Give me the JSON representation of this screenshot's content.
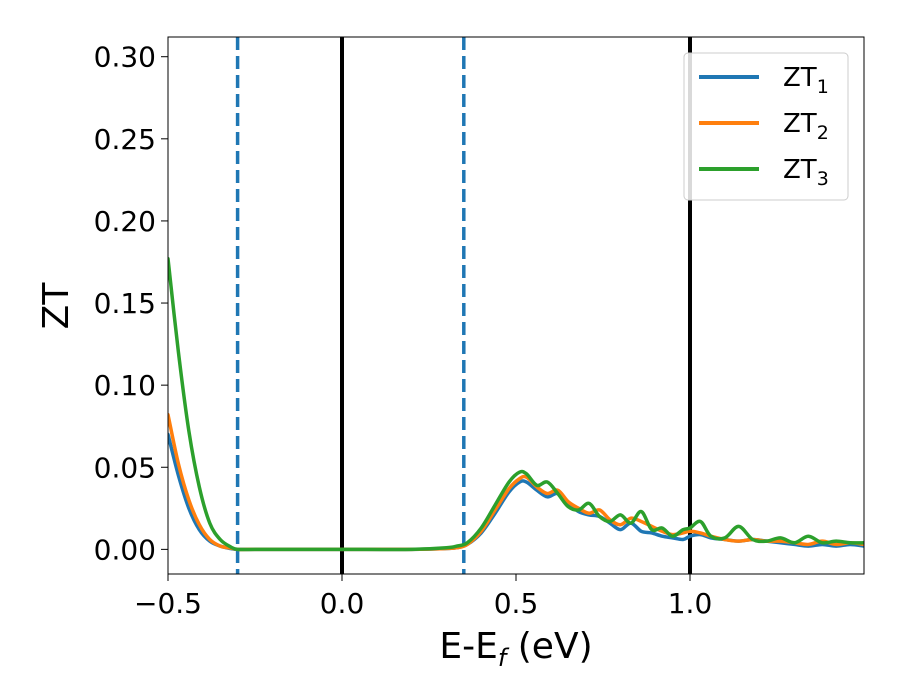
{
  "chart_data": {
    "type": "line",
    "xlabel": "E-E_f (eV)",
    "ylabel": "ZT",
    "xlim": [
      -0.5,
      1.5
    ],
    "ylim": [
      -0.015,
      0.312
    ],
    "x_ticks": [
      "−0.5",
      "0.0",
      "0.5",
      "1.0"
    ],
    "x_tick_values": [
      -0.5,
      0.0,
      0.5,
      1.0
    ],
    "y_ticks": [
      "0.00",
      "0.05",
      "0.10",
      "0.15",
      "0.20",
      "0.25",
      "0.30"
    ],
    "y_tick_values": [
      0.0,
      0.05,
      0.1,
      0.15,
      0.2,
      0.25,
      0.3
    ],
    "grid": false,
    "legend_position": "top-right",
    "vlines": [
      {
        "x": -0.3,
        "style": "dashed",
        "color": "#1f77b4"
      },
      {
        "x": 0.0,
        "style": "solid",
        "color": "#000000"
      },
      {
        "x": 0.35,
        "style": "dashed",
        "color": "#1f77b4"
      },
      {
        "x": 1.0,
        "style": "solid",
        "color": "#000000"
      }
    ],
    "series": [
      {
        "name": "ZT_1",
        "label_main": "ZT",
        "label_sub": "1",
        "color": "#1f77b4",
        "x": [
          -0.5,
          -0.47,
          -0.44,
          -0.41,
          -0.38,
          -0.35,
          -0.32,
          -0.3,
          -0.25,
          -0.2,
          0.0,
          0.2,
          0.3,
          0.33,
          0.36,
          0.4,
          0.44,
          0.48,
          0.51,
          0.53,
          0.56,
          0.59,
          0.62,
          0.65,
          0.68,
          0.71,
          0.74,
          0.77,
          0.8,
          0.83,
          0.86,
          0.89,
          0.92,
          0.95,
          0.98,
          1.0,
          1.03,
          1.06,
          1.1,
          1.14,
          1.18,
          1.22,
          1.26,
          1.3,
          1.34,
          1.38,
          1.42,
          1.46,
          1.5
        ],
        "y": [
          0.07,
          0.045,
          0.025,
          0.012,
          0.005,
          0.002,
          0.0005,
          0.0,
          0.0,
          0.0,
          0.0,
          0.0,
          0.0005,
          0.001,
          0.003,
          0.01,
          0.022,
          0.035,
          0.041,
          0.041,
          0.036,
          0.032,
          0.034,
          0.028,
          0.023,
          0.021,
          0.02,
          0.016,
          0.012,
          0.016,
          0.011,
          0.01,
          0.008,
          0.007,
          0.006,
          0.008,
          0.009,
          0.007,
          0.006,
          0.005,
          0.006,
          0.005,
          0.004,
          0.003,
          0.002,
          0.003,
          0.002,
          0.003,
          0.002
        ]
      },
      {
        "name": "ZT_2",
        "label_main": "ZT",
        "label_sub": "2",
        "color": "#ff7f0e",
        "x": [
          -0.5,
          -0.47,
          -0.44,
          -0.41,
          -0.38,
          -0.35,
          -0.32,
          -0.3,
          -0.25,
          -0.2,
          0.0,
          0.2,
          0.3,
          0.33,
          0.36,
          0.4,
          0.44,
          0.48,
          0.51,
          0.53,
          0.56,
          0.59,
          0.62,
          0.65,
          0.68,
          0.71,
          0.74,
          0.77,
          0.8,
          0.83,
          0.86,
          0.89,
          0.92,
          0.95,
          0.98,
          1.0,
          1.03,
          1.06,
          1.1,
          1.14,
          1.18,
          1.22,
          1.26,
          1.3,
          1.34,
          1.38,
          1.42,
          1.46,
          1.5
        ],
        "y": [
          0.082,
          0.052,
          0.03,
          0.015,
          0.006,
          0.002,
          0.0008,
          0.0,
          0.0,
          0.0,
          0.0,
          0.0,
          0.0005,
          0.001,
          0.003,
          0.011,
          0.024,
          0.037,
          0.043,
          0.044,
          0.038,
          0.034,
          0.036,
          0.029,
          0.025,
          0.022,
          0.024,
          0.018,
          0.015,
          0.019,
          0.017,
          0.014,
          0.011,
          0.009,
          0.01,
          0.011,
          0.01,
          0.008,
          0.006,
          0.005,
          0.006,
          0.005,
          0.005,
          0.004,
          0.003,
          0.005,
          0.003,
          0.004,
          0.003
        ]
      },
      {
        "name": "ZT_3",
        "label_main": "ZT",
        "label_sub": "3",
        "color": "#2ca02c",
        "x": [
          -0.5,
          -0.47,
          -0.44,
          -0.41,
          -0.38,
          -0.35,
          -0.32,
          -0.3,
          -0.25,
          -0.2,
          0.0,
          0.2,
          0.3,
          0.33,
          0.36,
          0.4,
          0.44,
          0.48,
          0.51,
          0.53,
          0.56,
          0.59,
          0.62,
          0.65,
          0.68,
          0.71,
          0.74,
          0.77,
          0.8,
          0.83,
          0.86,
          0.89,
          0.92,
          0.95,
          0.98,
          1.0,
          1.03,
          1.06,
          1.1,
          1.14,
          1.18,
          1.22,
          1.26,
          1.3,
          1.34,
          1.38,
          1.42,
          1.46,
          1.5
        ],
        "y": [
          0.177,
          0.12,
          0.072,
          0.038,
          0.016,
          0.006,
          0.0015,
          0.0,
          0.0,
          0.0,
          0.0,
          0.0,
          0.001,
          0.002,
          0.004,
          0.013,
          0.027,
          0.041,
          0.047,
          0.046,
          0.039,
          0.041,
          0.034,
          0.026,
          0.024,
          0.028,
          0.02,
          0.017,
          0.021,
          0.016,
          0.023,
          0.012,
          0.013,
          0.008,
          0.012,
          0.013,
          0.017,
          0.008,
          0.007,
          0.014,
          0.006,
          0.005,
          0.007,
          0.004,
          0.008,
          0.004,
          0.005,
          0.004,
          0.004
        ]
      }
    ]
  }
}
